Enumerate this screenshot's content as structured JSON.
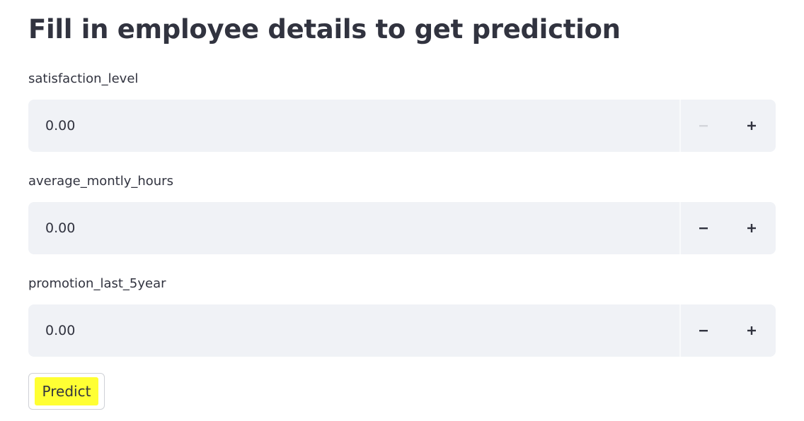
{
  "page": {
    "title": "Fill in employee details to get prediction"
  },
  "fields": [
    {
      "label": "satisfaction_level",
      "value": "0.00",
      "minus_disabled": true
    },
    {
      "label": "average_montly_hours",
      "value": "0.00",
      "minus_disabled": false
    },
    {
      "label": "promotion_last_5year",
      "value": "0.00",
      "minus_disabled": false
    }
  ],
  "actions": {
    "predict_label": "Predict"
  },
  "icons": {
    "decrement": "minus-icon",
    "increment": "plus-icon"
  },
  "colors": {
    "text": "#31333f",
    "input_background": "#f0f2f6",
    "disabled_icon": "#d3d5da",
    "highlight": "#ffff33"
  }
}
